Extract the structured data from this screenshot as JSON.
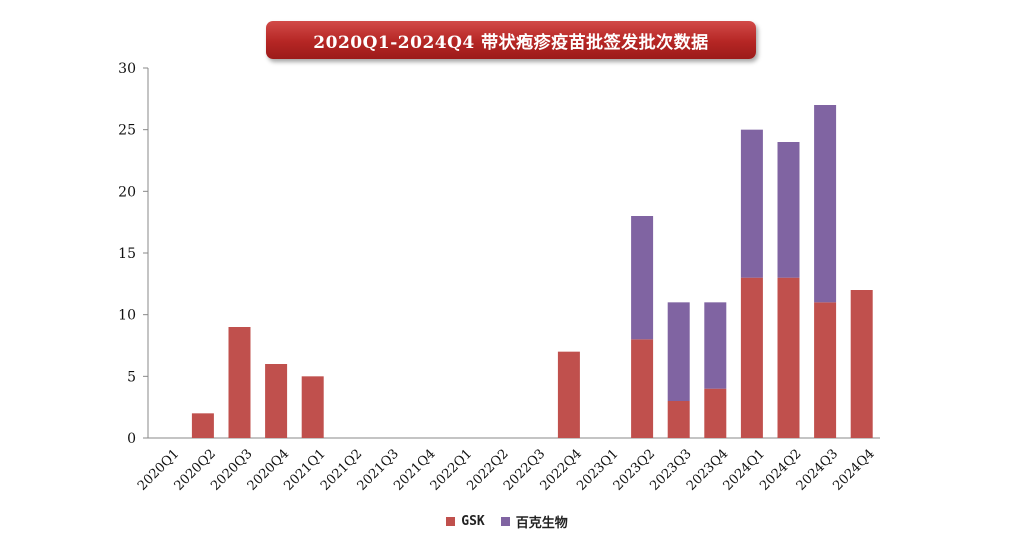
{
  "title": "2020Q1-2024Q4 带状疱疹疫苗批签发批次数据",
  "colors": {
    "gsk": "#c0504d",
    "baike": "#8064a2",
    "title_bg": "#b52624"
  },
  "chart_data": {
    "type": "bar",
    "stacked": true,
    "categories": [
      "2020Q1",
      "2020Q2",
      "2020Q3",
      "2020Q4",
      "2021Q1",
      "2021Q2",
      "2021Q3",
      "2021Q4",
      "2022Q1",
      "2022Q2",
      "2022Q3",
      "2022Q4",
      "2023Q1",
      "2023Q2",
      "2023Q3",
      "2023Q4",
      "2024Q1",
      "2024Q2",
      "2024Q3",
      "2024Q4"
    ],
    "series": [
      {
        "name": "GSK",
        "color": "#c0504d",
        "values": [
          0,
          2,
          9,
          6,
          5,
          0,
          0,
          0,
          0,
          0,
          0,
          7,
          0,
          8,
          3,
          4,
          13,
          13,
          11,
          12
        ]
      },
      {
        "name": "百克生物",
        "color": "#8064a2",
        "values": [
          0,
          0,
          0,
          0,
          0,
          0,
          0,
          0,
          0,
          0,
          0,
          0,
          0,
          10,
          8,
          7,
          12,
          11,
          16,
          0
        ]
      }
    ],
    "ylim": [
      0,
      30
    ],
    "yticks": [
      0,
      5,
      10,
      15,
      20,
      25,
      30
    ],
    "grid": false,
    "legend": "bottom"
  }
}
